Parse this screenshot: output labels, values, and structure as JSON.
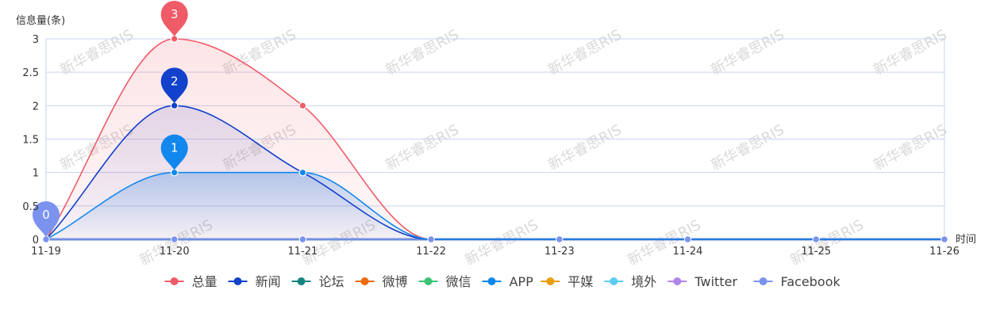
{
  "chart_data": {
    "type": "area",
    "ylabel": "信息量(条)",
    "xlabel": "时间",
    "categories": [
      "11-19",
      "11-20",
      "11-21",
      "11-22",
      "11-23",
      "11-24",
      "11-25",
      "11-26"
    ],
    "ylim": [
      0,
      3
    ],
    "yticks": [
      "0",
      "0.5",
      "1",
      "1.5",
      "2",
      "2.5",
      "3"
    ],
    "grid": true,
    "legend_placement": "bottom-center",
    "series": [
      {
        "name": "总量",
        "color": "#ef5b67",
        "values": [
          0,
          3,
          2,
          0,
          0,
          0,
          0,
          0
        ],
        "pin": {
          "index": 1,
          "label": "3"
        }
      },
      {
        "name": "新闻",
        "color": "#1241cc",
        "values": [
          0,
          2,
          1,
          0,
          0,
          0,
          0,
          0
        ],
        "pin": {
          "index": 1,
          "label": "2"
        }
      },
      {
        "name": "论坛",
        "color": "#168580",
        "values": [
          0,
          0,
          0,
          0,
          0,
          0,
          0,
          0
        ]
      },
      {
        "name": "微博",
        "color": "#ea6a0c",
        "values": [
          0,
          0,
          0,
          0,
          0,
          0,
          0,
          0
        ]
      },
      {
        "name": "微信",
        "color": "#3cc273",
        "values": [
          0,
          0,
          0,
          0,
          0,
          0,
          0,
          0
        ]
      },
      {
        "name": "APP",
        "color": "#1288ee",
        "values": [
          0,
          1,
          1,
          0,
          0,
          0,
          0,
          0
        ],
        "pin": {
          "index": 1,
          "label": "1"
        }
      },
      {
        "name": "平媒",
        "color": "#ed9c0c",
        "values": [
          0,
          0,
          0,
          0,
          0,
          0,
          0,
          0
        ]
      },
      {
        "name": "境外",
        "color": "#5ccbf0",
        "values": [
          0,
          0,
          0,
          0,
          0,
          0,
          0,
          0
        ]
      },
      {
        "name": "Twitter",
        "color": "#b084e8",
        "values": [
          0,
          0,
          0,
          0,
          0,
          0,
          0,
          0
        ]
      },
      {
        "name": "Facebook",
        "color": "#7b93ee",
        "values": [
          0,
          0,
          0,
          0,
          0,
          0,
          0,
          0
        ],
        "pin": {
          "index": 0,
          "label": "0"
        }
      }
    ]
  },
  "watermark": "新华睿思RIS"
}
